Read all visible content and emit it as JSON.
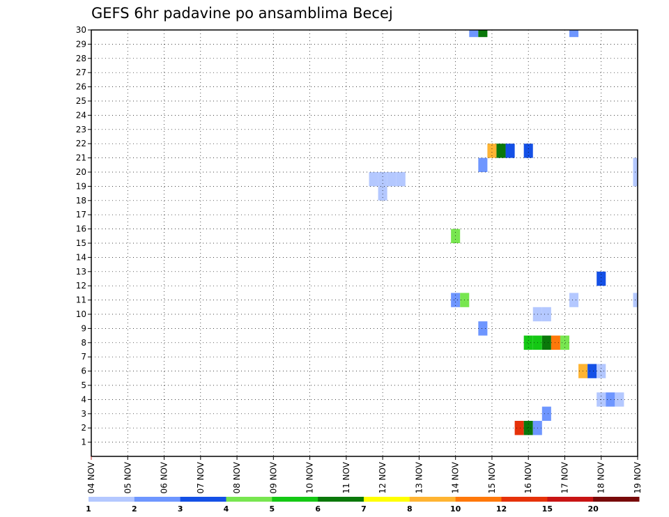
{
  "chart_data": {
    "type": "heatmap",
    "title": "GEFS 6hr padavine po ansamblima Becej",
    "x_tick_labels": [
      "04 NOV",
      "05 NOV",
      "06 NOV",
      "07 NOV",
      "08 NOV",
      "09 NOV",
      "10 NOV",
      "11 NOV",
      "12 NOV",
      "13 NOV",
      "14 NOV",
      "15 NOV",
      "16 NOV",
      "17 NOV",
      "18 NOV",
      "19 NOV"
    ],
    "y_tick_labels": [
      "1",
      "2",
      "3",
      "4",
      "5",
      "6",
      "7",
      "8",
      "9",
      "10",
      "11",
      "12",
      "13",
      "14",
      "15",
      "16",
      "17",
      "18",
      "19",
      "20",
      "21",
      "22",
      "23",
      "24",
      "25",
      "26",
      "27",
      "28",
      "29",
      "30"
    ],
    "ylim": [
      0,
      30
    ],
    "x_unit": "days since 04 NOV",
    "xlim": [
      0,
      15
    ],
    "grid": true,
    "colorbar": {
      "colors": [
        "#b4c8ff",
        "#6e96ff",
        "#1450e6",
        "#78e650",
        "#14c814",
        "#0a780a",
        "#ffff00",
        "#ffb432",
        "#ff780a",
        "#e6320a",
        "#c81414",
        "#780a0a"
      ],
      "labels": [
        "1",
        "2",
        "3",
        "4",
        "5",
        "6",
        "7",
        "8",
        "10",
        "12",
        "15",
        "20"
      ]
    },
    "cells": [
      {
        "x": 10.0,
        "y": 15.5,
        "c": 3
      },
      {
        "x": 10.0,
        "y": 11.0,
        "c": 1
      },
      {
        "x": 10.25,
        "y": 11.0,
        "c": 3
      },
      {
        "x": 10.75,
        "y": 9.0,
        "c": 1
      },
      {
        "x": 10.75,
        "y": 20.5,
        "c": 1
      },
      {
        "x": 10.5,
        "y": 30.0,
        "c": 1
      },
      {
        "x": 10.75,
        "y": 30.0,
        "c": 5
      },
      {
        "x": 11.0,
        "y": 21.5,
        "c": 7
      },
      {
        "x": 11.25,
        "y": 21.5,
        "c": 5
      },
      {
        "x": 11.5,
        "y": 21.5,
        "c": 2
      },
      {
        "x": 12.0,
        "y": 21.5,
        "c": 2
      },
      {
        "x": 7.75,
        "y": 19.5,
        "c": 0
      },
      {
        "x": 8.0,
        "y": 19.5,
        "c": 0
      },
      {
        "x": 8.25,
        "y": 19.5,
        "c": 0
      },
      {
        "x": 8.5,
        "y": 19.5,
        "c": 0
      },
      {
        "x": 8.0,
        "y": 18.5,
        "c": 0
      },
      {
        "x": 12.0,
        "y": 8.0,
        "c": 4
      },
      {
        "x": 12.25,
        "y": 8.0,
        "c": 4
      },
      {
        "x": 12.5,
        "y": 8.0,
        "c": 5
      },
      {
        "x": 12.75,
        "y": 8.0,
        "c": 8
      },
      {
        "x": 13.0,
        "y": 8.0,
        "c": 3
      },
      {
        "x": 12.25,
        "y": 10.0,
        "c": 0
      },
      {
        "x": 12.5,
        "y": 10.0,
        "c": 0
      },
      {
        "x": 13.5,
        "y": 6.0,
        "c": 7
      },
      {
        "x": 13.75,
        "y": 6.0,
        "c": 2
      },
      {
        "x": 14.0,
        "y": 6.0,
        "c": 0
      },
      {
        "x": 13.25,
        "y": 11.0,
        "c": 0
      },
      {
        "x": 14.0,
        "y": 12.5,
        "c": 2
      },
      {
        "x": 13.25,
        "y": 30.0,
        "c": 1
      },
      {
        "x": 14.0,
        "y": 4.0,
        "c": 0
      },
      {
        "x": 14.25,
        "y": 4.0,
        "c": 1
      },
      {
        "x": 14.5,
        "y": 4.0,
        "c": 0
      },
      {
        "x": 12.5,
        "y": 3.0,
        "c": 1
      },
      {
        "x": 11.75,
        "y": 2.0,
        "c": 9
      },
      {
        "x": 12.0,
        "y": 2.0,
        "c": 5
      },
      {
        "x": 12.25,
        "y": 2.0,
        "c": 1
      },
      {
        "x": 15.0,
        "y": 19.5,
        "c": 0
      },
      {
        "x": 15.0,
        "y": 20.5,
        "c": 0
      },
      {
        "x": 15.0,
        "y": 11.0,
        "c": 0
      }
    ]
  }
}
